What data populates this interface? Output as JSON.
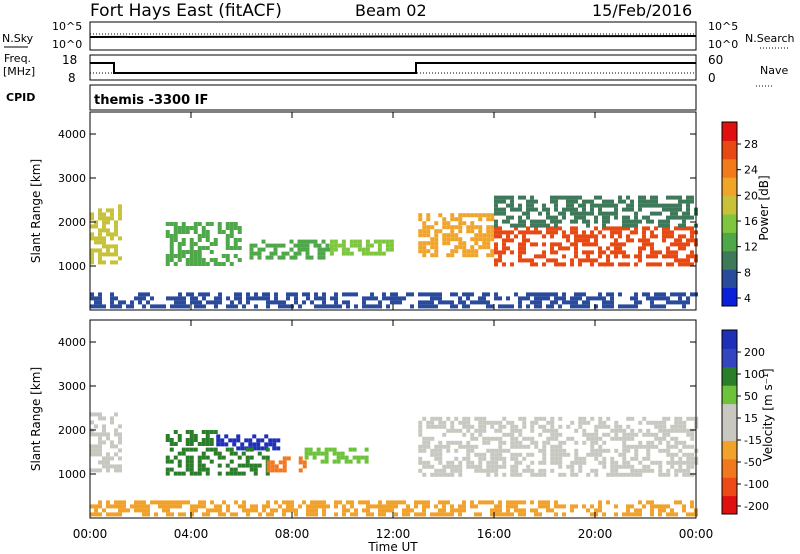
{
  "header": {
    "title": "Fort Hays East (fitACF)",
    "beam": "Beam 02",
    "date": "15/Feb/2016",
    "mode": "themis -3300 IF"
  },
  "small_panels": {
    "nsky_label": "N.Sky",
    "nsearch_label": "N.Search",
    "freq_label_top": "Freq.",
    "freq_label_unit": "[MHz]",
    "nave_label": "Nave",
    "cpid_label": "CPID",
    "noise_left_ticks": [
      "10^5",
      "10^0"
    ],
    "noise_right_ticks": [
      "10^5",
      "10^0"
    ],
    "freq_left_ticks": [
      "18",
      "8"
    ],
    "freq_right_ticks": [
      "60",
      "0"
    ]
  },
  "colors": {
    "power_scale": [
      "#0a1fd8",
      "#2a4a9c",
      "#3e7a5a",
      "#4ea84a",
      "#7fc640",
      "#c8c23a",
      "#f0a42a",
      "#f27a1a",
      "#e84812",
      "#e01010"
    ],
    "velocity_scale": [
      "#1e2fb8",
      "#3346c0",
      "#2a7e2a",
      "#6cc23a",
      "#c8c8c0",
      "#c8c8c0",
      "#f2a22a",
      "#f27820",
      "#ee4a18",
      "#e01010"
    ]
  },
  "chart_data": [
    {
      "type": "heatmap",
      "name": "power",
      "xlabel": "",
      "ylabel": "Slant Range [km]",
      "x_range_hours": [
        0,
        24
      ],
      "y_range_km": [
        0,
        4500
      ],
      "y_ticks": [
        "1000",
        "2000",
        "3000",
        "4000"
      ],
      "colorbar_label": "Power [dB]",
      "colorbar_ticks": [
        "28",
        "24",
        "20",
        "16",
        "12",
        "8",
        "4"
      ],
      "colorbar_range": [
        0,
        32
      ],
      "regions": [
        {
          "x0": 0.0,
          "x1": 1.2,
          "y0": 1100,
          "y1": 2400,
          "v": 18
        },
        {
          "x0": 3.0,
          "x1": 6.0,
          "y0": 1000,
          "y1": 2000,
          "v": 10
        },
        {
          "x0": 6.0,
          "x1": 9.5,
          "y0": 1200,
          "y1": 1600,
          "v": 12
        },
        {
          "x0": 9.5,
          "x1": 12.0,
          "y0": 1300,
          "y1": 1600,
          "v": 14
        },
        {
          "x0": 13.0,
          "x1": 16.0,
          "y0": 1200,
          "y1": 2200,
          "v": 22
        },
        {
          "x0": 16.0,
          "x1": 24.0,
          "y0": 1000,
          "y1": 1900,
          "v": 26
        },
        {
          "x0": 16.0,
          "x1": 24.0,
          "y0": 1900,
          "y1": 2600,
          "v": 9
        },
        {
          "x0": 0.0,
          "x1": 24.0,
          "y0": 100,
          "y1": 400,
          "v": 6
        }
      ]
    },
    {
      "type": "heatmap",
      "name": "velocity",
      "xlabel": "Time UT",
      "ylabel": "Slant Range [km]",
      "x_range_hours": [
        0,
        24
      ],
      "x_ticks": [
        "00:00",
        "04:00",
        "08:00",
        "12:00",
        "16:00",
        "20:00",
        "00:00"
      ],
      "y_range_km": [
        0,
        4500
      ],
      "y_ticks": [
        "1000",
        "2000",
        "3000",
        "4000"
      ],
      "colorbar_label": "Velocity [m s⁻¹]",
      "colorbar_ticks": [
        "200",
        "100",
        "50",
        "15",
        "-15",
        "-50",
        "-100",
        "-200"
      ],
      "regions": [
        {
          "x0": 0.0,
          "x1": 1.2,
          "y0": 1100,
          "y1": 2400,
          "v": 0
        },
        {
          "x0": 3.0,
          "x1": 5.0,
          "y0": 1700,
          "y1": 2000,
          "v": 60
        },
        {
          "x0": 5.0,
          "x1": 7.5,
          "y0": 1600,
          "y1": 1900,
          "v": 250
        },
        {
          "x0": 3.0,
          "x1": 7.0,
          "y0": 1000,
          "y1": 1600,
          "v": 60
        },
        {
          "x0": 7.0,
          "x1": 8.5,
          "y0": 1100,
          "y1": 1400,
          "v": -60
        },
        {
          "x0": 8.5,
          "x1": 11.0,
          "y0": 1300,
          "y1": 1600,
          "v": 40
        },
        {
          "x0": 13.0,
          "x1": 24.0,
          "y0": 1000,
          "y1": 2300,
          "v": 0
        },
        {
          "x0": 0.0,
          "x1": 24.0,
          "y0": 100,
          "y1": 400,
          "v": -40
        }
      ]
    }
  ]
}
